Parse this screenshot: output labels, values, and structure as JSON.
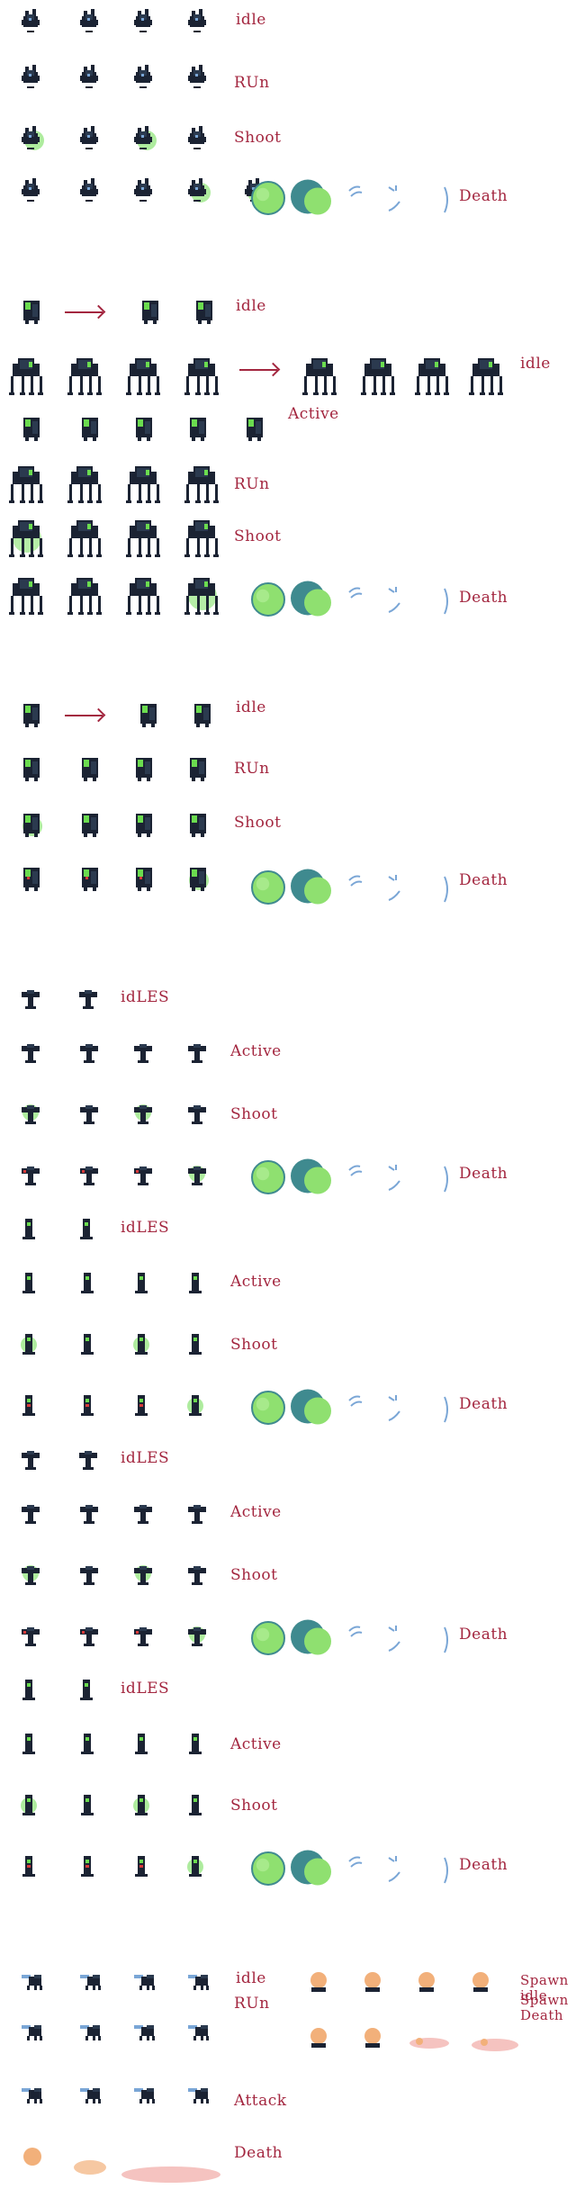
{
  "colors": {
    "label": "#a3263f",
    "robot_dark": "#1b2333",
    "robot_mid": "#2b3a4f",
    "accent_green": "#6bdc4f",
    "smoke_light": "#8fe070",
    "smoke_dark": "#3f8a8f",
    "spark_blue": "#7aa6d6",
    "flesh_orange": "#f2b07a",
    "flesh_pink": "#f5c3c0",
    "red_eye": "#d83a3a"
  },
  "labels": {
    "s1_idle": "idle",
    "s1_run": "RUn",
    "s1_shoot": "Shoot",
    "s1_death": "Death",
    "s2_idle_a": "idle",
    "s2_idle_b": "idle",
    "s2_active": "Active",
    "s2_run": "RUn",
    "s2_shoot": "Shoot",
    "s2_death": "Death",
    "s3_idle": "idle",
    "s3_run": "RUn",
    "s3_shoot": "Shoot",
    "s3_death": "Death",
    "t1_idles": "idLES",
    "t1_active": "Active",
    "t1_shoot": "Shoot",
    "t1_death": "Death",
    "t2_idles": "idLES",
    "t2_active": "Active",
    "t2_shoot": "Shoot",
    "t2_death": "Death",
    "t3_idles": "idLES",
    "t3_active": "Active",
    "t3_shoot": "Shoot",
    "t3_death": "Death",
    "t4_idles": "idLES",
    "t4_active": "Active",
    "t4_shoot": "Shoot",
    "t4_death": "Death",
    "b_idle": "idle",
    "b_run": "RUn",
    "b_attack": "Attack",
    "b_death": "Death",
    "b_spawn_idle": "Spawn\nidle",
    "b_spawn_death": "Spawn\nDeath"
  }
}
